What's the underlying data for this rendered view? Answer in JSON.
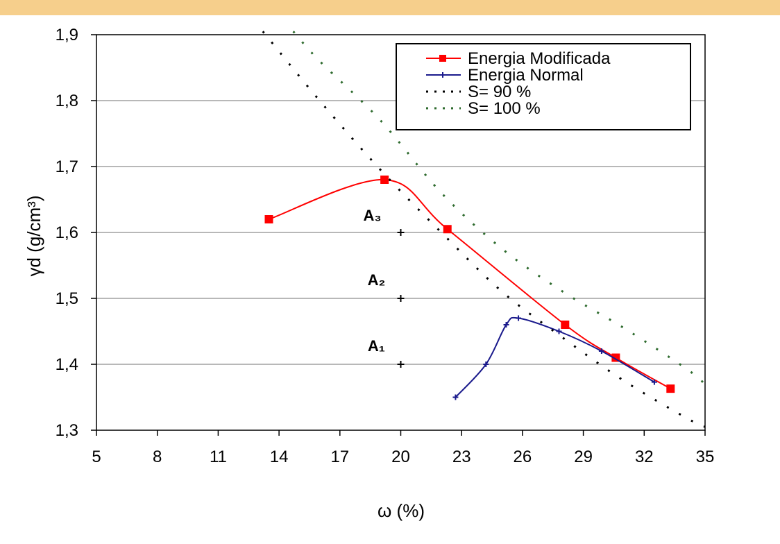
{
  "chart_data": {
    "type": "line",
    "title": "",
    "xlabel": "ω (%)",
    "ylabel": "γd (g/cm³)",
    "xlim": [
      5,
      35
    ],
    "ylim": [
      1.3,
      1.9
    ],
    "x_ticks": [
      "5",
      "8",
      "11",
      "14",
      "17",
      "20",
      "23",
      "26",
      "29",
      "32",
      "35"
    ],
    "y_ticks": [
      "1,3",
      "1,4",
      "1,5",
      "1,6",
      "1,7",
      "1,8",
      "1,9"
    ],
    "grid": "horizontal",
    "legend_position": "top-right",
    "series": [
      {
        "name": "Energia Modificada",
        "color": "#ff0000",
        "style": "solid",
        "marker": "square",
        "x": [
          13.5,
          19.2,
          22.3,
          28.1,
          30.6,
          33.3
        ],
        "y": [
          1.62,
          1.68,
          1.605,
          1.46,
          1.41,
          1.363
        ]
      },
      {
        "name": "Energia Normal",
        "color": "#1a1a8c",
        "style": "solid",
        "marker": "plus",
        "x": [
          22.7,
          24.2,
          25.2,
          25.8,
          27.8,
          29.9,
          32.5
        ],
        "y": [
          1.35,
          1.4,
          1.46,
          1.47,
          1.45,
          1.42,
          1.373
        ]
      },
      {
        "name": "S= 90 %",
        "color": "#000000",
        "style": "dotted",
        "marker": "none",
        "x": [
          13.2,
          16,
          19,
          22,
          25,
          28,
          31,
          34,
          35
        ],
        "y": [
          1.905,
          1.8,
          1.695,
          1.6,
          1.51,
          1.44,
          1.375,
          1.32,
          1.305
        ]
      },
      {
        "name": "S= 100 %",
        "color": "#2e6b2e",
        "style": "dotted",
        "marker": "none",
        "x": [
          14.7,
          16,
          19,
          22,
          25,
          28,
          31,
          34,
          35
        ],
        "y": [
          1.905,
          1.86,
          1.77,
          1.66,
          1.575,
          1.51,
          1.455,
          1.395,
          1.37
        ]
      }
    ],
    "annotations": [
      {
        "text": "A₃",
        "x": 18.6,
        "y": 1.618
      },
      {
        "text": "A₂",
        "x": 18.8,
        "y": 1.52
      },
      {
        "text": "A₁",
        "x": 18.8,
        "y": 1.42
      }
    ],
    "annotation_points": [
      {
        "x": 20,
        "y": 1.6
      },
      {
        "x": 20,
        "y": 1.5
      },
      {
        "x": 20,
        "y": 1.4
      }
    ]
  }
}
